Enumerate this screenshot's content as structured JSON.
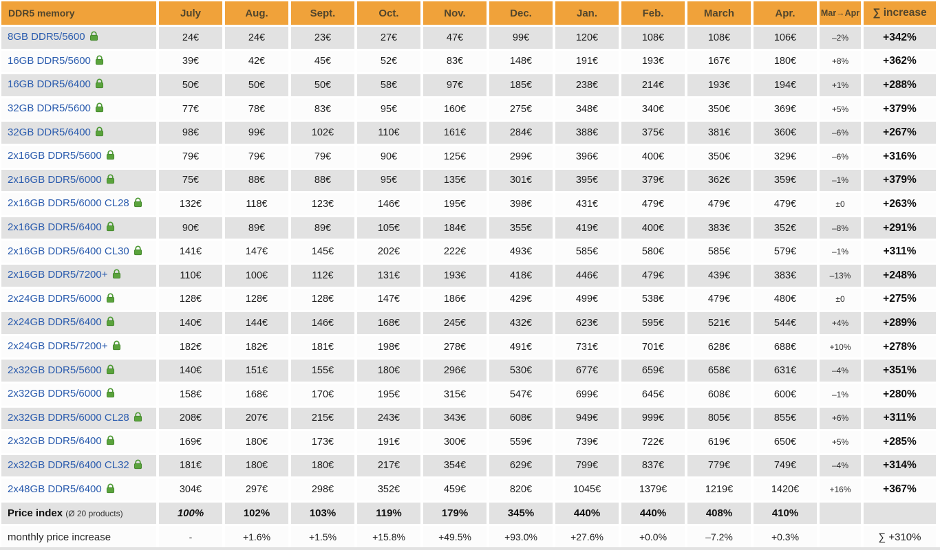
{
  "header": {
    "title": "DDR5 memory",
    "months": [
      "July",
      "Aug.",
      "Sept.",
      "Oct.",
      "Nov.",
      "Dec.",
      "Jan.",
      "Feb.",
      "March",
      "Apr."
    ],
    "change_col": "Mar→Apr",
    "sum_col": "∑ increase"
  },
  "colors": {
    "header_orange": "#F0A23A",
    "header_text": "#51452C",
    "product_link_blue": "#2B5CAE",
    "lock_green": "#5AA33C",
    "row_gray": "#E2E2E2",
    "row_white": "#FCFCFC"
  },
  "icons": {
    "lock": "lock-icon"
  },
  "rows": [
    {
      "name": "8GB DDR5/5600",
      "prices": [
        "24€",
        "24€",
        "23€",
        "27€",
        "47€",
        "99€",
        "120€",
        "108€",
        "108€",
        "106€"
      ],
      "change": "–2%",
      "increase": "+342%"
    },
    {
      "name": "16GB DDR5/5600",
      "prices": [
        "39€",
        "42€",
        "45€",
        "52€",
        "83€",
        "148€",
        "191€",
        "193€",
        "167€",
        "180€"
      ],
      "change": "+8%",
      "increase": "+362%"
    },
    {
      "name": "16GB DDR5/6400",
      "prices": [
        "50€",
        "50€",
        "50€",
        "58€",
        "97€",
        "185€",
        "238€",
        "214€",
        "193€",
        "194€"
      ],
      "change": "+1%",
      "increase": "+288%"
    },
    {
      "name": "32GB DDR5/5600",
      "prices": [
        "77€",
        "78€",
        "83€",
        "95€",
        "160€",
        "275€",
        "348€",
        "340€",
        "350€",
        "369€"
      ],
      "change": "+5%",
      "increase": "+379%"
    },
    {
      "name": "32GB DDR5/6400",
      "prices": [
        "98€",
        "99€",
        "102€",
        "110€",
        "161€",
        "284€",
        "388€",
        "375€",
        "381€",
        "360€"
      ],
      "change": "–6%",
      "increase": "+267%"
    },
    {
      "name": "2x16GB DDR5/5600",
      "prices": [
        "79€",
        "79€",
        "79€",
        "90€",
        "125€",
        "299€",
        "396€",
        "400€",
        "350€",
        "329€"
      ],
      "change": "–6%",
      "increase": "+316%"
    },
    {
      "name": "2x16GB DDR5/6000",
      "prices": [
        "75€",
        "88€",
        "88€",
        "95€",
        "135€",
        "301€",
        "395€",
        "379€",
        "362€",
        "359€"
      ],
      "change": "–1%",
      "increase": "+379%"
    },
    {
      "name": "2x16GB DDR5/6000 CL28",
      "prices": [
        "132€",
        "118€",
        "123€",
        "146€",
        "195€",
        "398€",
        "431€",
        "479€",
        "479€",
        "479€"
      ],
      "change": "±0",
      "increase": "+263%"
    },
    {
      "name": "2x16GB DDR5/6400",
      "prices": [
        "90€",
        "89€",
        "89€",
        "105€",
        "184€",
        "355€",
        "419€",
        "400€",
        "383€",
        "352€"
      ],
      "change": "–8%",
      "increase": "+291%"
    },
    {
      "name": "2x16GB DDR5/6400 CL30",
      "prices": [
        "141€",
        "147€",
        "145€",
        "202€",
        "222€",
        "493€",
        "585€",
        "580€",
        "585€",
        "579€"
      ],
      "change": "–1%",
      "increase": "+311%"
    },
    {
      "name": "2x16GB DDR5/7200+",
      "prices": [
        "110€",
        "100€",
        "112€",
        "131€",
        "193€",
        "418€",
        "446€",
        "479€",
        "439€",
        "383€"
      ],
      "change": "–13%",
      "increase": "+248%"
    },
    {
      "name": "2x24GB DDR5/6000",
      "prices": [
        "128€",
        "128€",
        "128€",
        "147€",
        "186€",
        "429€",
        "499€",
        "538€",
        "479€",
        "480€"
      ],
      "change": "±0",
      "increase": "+275%"
    },
    {
      "name": "2x24GB DDR5/6400",
      "prices": [
        "140€",
        "144€",
        "146€",
        "168€",
        "245€",
        "432€",
        "623€",
        "595€",
        "521€",
        "544€"
      ],
      "change": "+4%",
      "increase": "+289%"
    },
    {
      "name": "2x24GB DDR5/7200+",
      "prices": [
        "182€",
        "182€",
        "181€",
        "198€",
        "278€",
        "491€",
        "731€",
        "701€",
        "628€",
        "688€"
      ],
      "change": "+10%",
      "increase": "+278%"
    },
    {
      "name": "2x32GB DDR5/5600",
      "prices": [
        "140€",
        "151€",
        "155€",
        "180€",
        "296€",
        "530€",
        "677€",
        "659€",
        "658€",
        "631€"
      ],
      "change": "–4%",
      "increase": "+351%"
    },
    {
      "name": "2x32GB DDR5/6000",
      "prices": [
        "158€",
        "168€",
        "170€",
        "195€",
        "315€",
        "547€",
        "699€",
        "645€",
        "608€",
        "600€"
      ],
      "change": "–1%",
      "increase": "+280%"
    },
    {
      "name": "2x32GB DDR5/6000 CL28",
      "prices": [
        "208€",
        "207€",
        "215€",
        "243€",
        "343€",
        "608€",
        "949€",
        "999€",
        "805€",
        "855€"
      ],
      "change": "+6%",
      "increase": "+311%"
    },
    {
      "name": "2x32GB DDR5/6400",
      "prices": [
        "169€",
        "180€",
        "173€",
        "191€",
        "300€",
        "559€",
        "739€",
        "722€",
        "619€",
        "650€"
      ],
      "change": "+5%",
      "increase": "+285%"
    },
    {
      "name": "2x32GB DDR5/6400 CL32",
      "prices": [
        "181€",
        "180€",
        "180€",
        "217€",
        "354€",
        "629€",
        "799€",
        "837€",
        "779€",
        "749€"
      ],
      "change": "–4%",
      "increase": "+314%"
    },
    {
      "name": "2x48GB DDR5/6400",
      "prices": [
        "304€",
        "297€",
        "298€",
        "352€",
        "459€",
        "820€",
        "1045€",
        "1379€",
        "1219€",
        "1420€"
      ],
      "change": "+16%",
      "increase": "+367%"
    }
  ],
  "price_index": {
    "label": "Price index",
    "sublabel": "(Ø 20 products)",
    "values": [
      "100%",
      "102%",
      "103%",
      "119%",
      "179%",
      "345%",
      "440%",
      "440%",
      "408%",
      "410%"
    ],
    "change": "",
    "increase": ""
  },
  "monthly": {
    "label": "monthly price increase",
    "values": [
      "-",
      "+1.6%",
      "+1.5%",
      "+15.8%",
      "+49.5%",
      "+93.0%",
      "+27.6%",
      "+0.0%",
      "–7.2%",
      "+0.3%"
    ],
    "change": "",
    "sum": "∑ +310%"
  }
}
